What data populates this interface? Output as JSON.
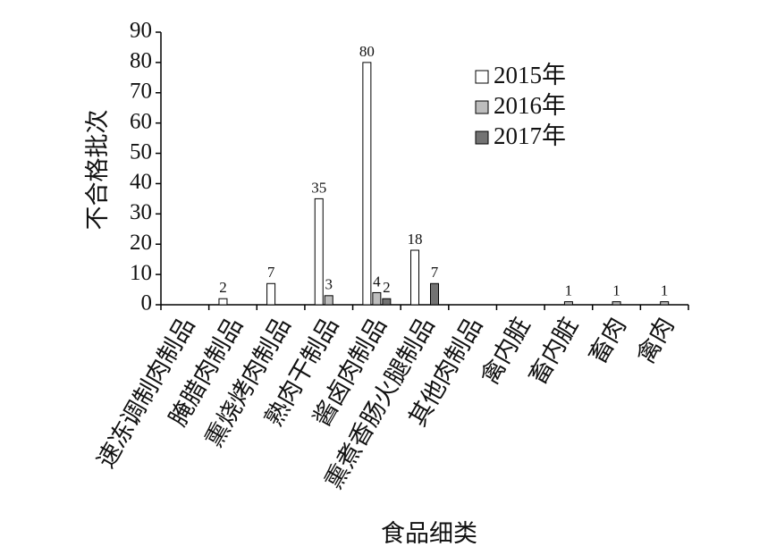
{
  "chart_data": {
    "type": "bar",
    "categories": [
      "速冻调制肉制品",
      "腌腊肉制品",
      "熏烧烤肉制品",
      "熟肉干制品",
      "酱卤肉制品",
      "熏煮香肠火腿制品",
      "其他肉制品",
      "禽内脏",
      "畜内脏",
      "畜肉",
      "禽肉"
    ],
    "series": [
      {
        "name": "2015年",
        "color": "#ffffff",
        "values": [
          null,
          2,
          7,
          35,
          80,
          18,
          null,
          null,
          null,
          null,
          null
        ]
      },
      {
        "name": "2016年",
        "color": "#bdbdbd",
        "values": [
          null,
          null,
          null,
          3,
          4,
          null,
          null,
          null,
          1,
          1,
          1
        ]
      },
      {
        "name": "2017年",
        "color": "#737373",
        "values": [
          null,
          null,
          null,
          null,
          2,
          7,
          null,
          null,
          null,
          null,
          null
        ]
      }
    ],
    "x_label": "食品细类",
    "y_label": "不合格批次",
    "ylim": [
      0,
      90
    ],
    "yticks": [
      0,
      10,
      20,
      30,
      40,
      50,
      60,
      70,
      80,
      90
    ],
    "grid": false,
    "legend": "upper right"
  }
}
